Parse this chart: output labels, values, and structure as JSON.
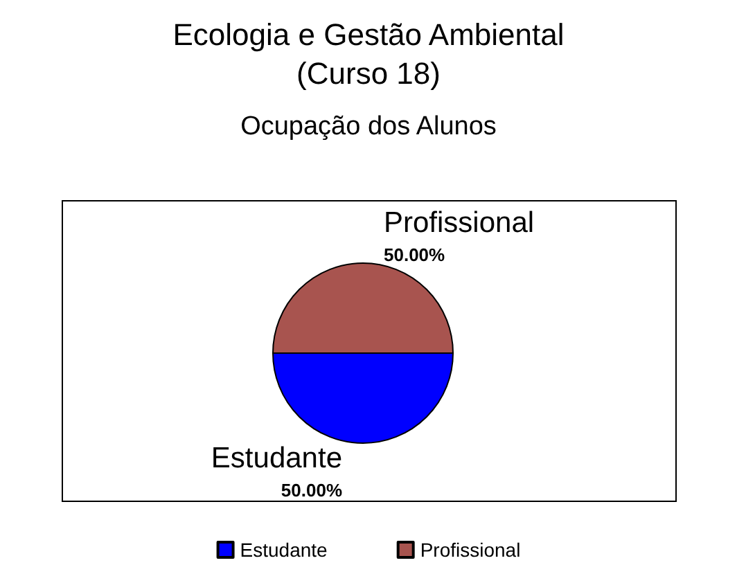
{
  "chart_data": {
    "type": "pie",
    "title": "Ecologia e Gestão Ambiental\n(Curso 18)",
    "subtitle": "Ocupação dos Alunos",
    "categories": [
      "Estudante",
      "Profissional"
    ],
    "values": [
      50,
      50
    ],
    "colors": [
      "#0000ff",
      "#a8544f"
    ],
    "value_labels": [
      "50.00%",
      "50.00%"
    ],
    "legend": "bottom"
  }
}
